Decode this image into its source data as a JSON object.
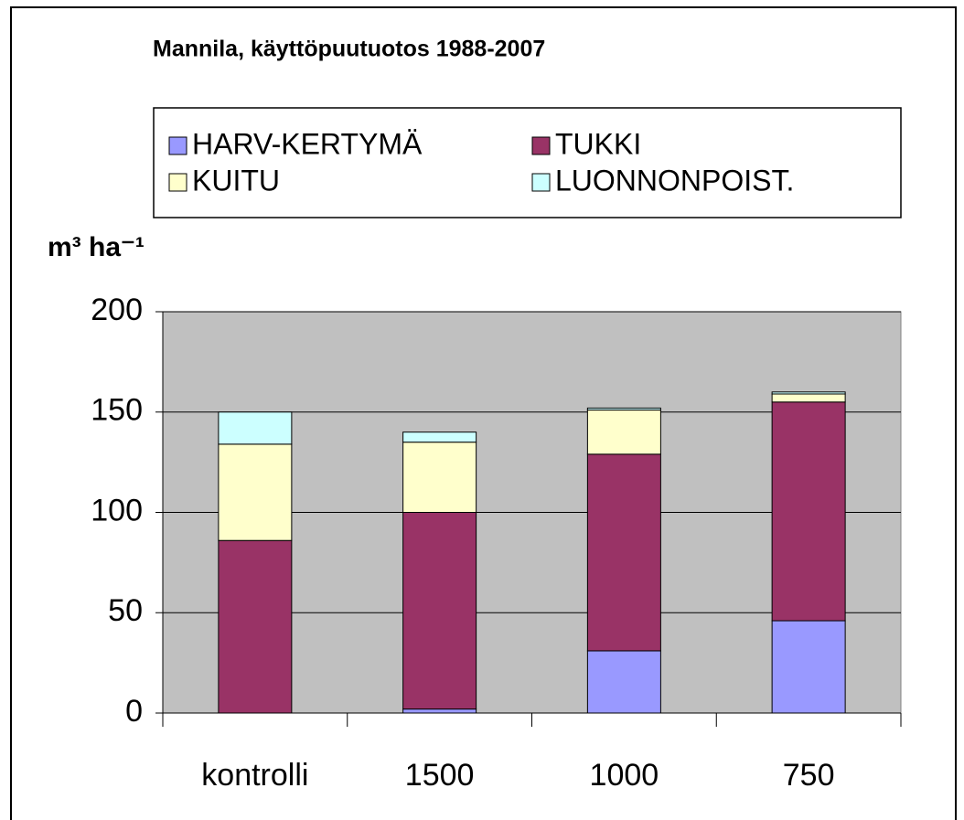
{
  "chart_data": {
    "type": "stacked_bar",
    "title": "Mannila, käyttöpuutuotos 1988-2007",
    "y_label": "m³ ha⁻¹",
    "categories": [
      "kontrolli",
      "1500",
      "1000",
      "750"
    ],
    "series": [
      {
        "name": "HARV-KERTYMÄ",
        "color": "#9999ff",
        "values": [
          0,
          2,
          31,
          46
        ]
      },
      {
        "name": "TUKKI",
        "color": "#993366",
        "values": [
          86,
          98,
          98,
          109
        ]
      },
      {
        "name": "KUITU",
        "color": "#ffffcc",
        "values": [
          48,
          35,
          22,
          4
        ]
      },
      {
        "name": "LUONNONPOIST.",
        "color": "#ccffff",
        "values": [
          16,
          5,
          1,
          1
        ]
      }
    ],
    "ylim": [
      0,
      200
    ],
    "yticks": [
      0,
      50,
      100,
      150,
      200
    ],
    "grid": true,
    "plot_background": "#c0c0c0"
  }
}
